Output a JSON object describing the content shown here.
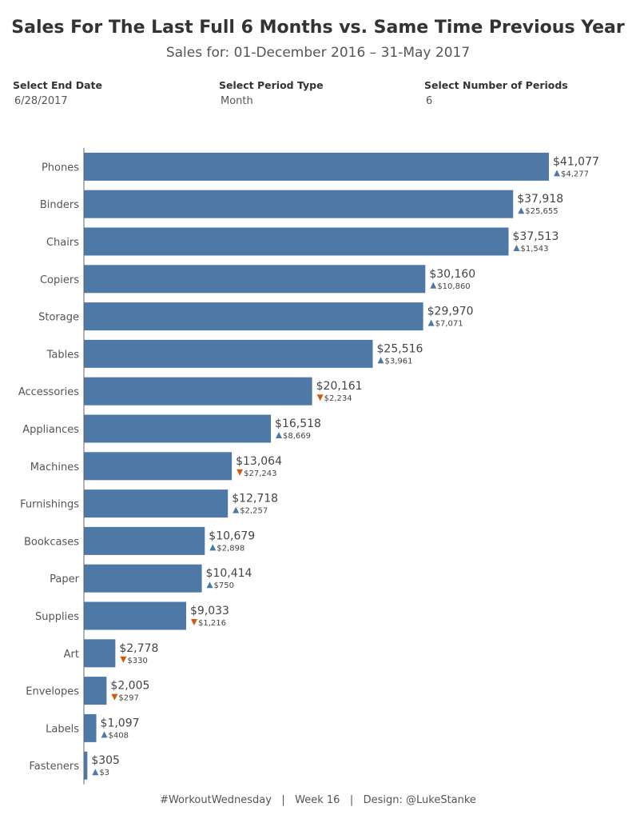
{
  "header": {
    "title": "Sales For The Last Full 6 Months vs. Same Time Previous Year",
    "subtitle": "Sales for: 01-December 2016 – 31-May 2017"
  },
  "parameters": [
    {
      "label": "Select End Date",
      "value": "6/28/2017"
    },
    {
      "label": "Select Period Type",
      "value": "Month"
    },
    {
      "label": "Select Number of Periods",
      "value": "6"
    }
  ],
  "colors": {
    "bar": "#4e79a7",
    "up": "#4e79a7",
    "down": "#d4580d",
    "axis": "#666666"
  },
  "chart_data": {
    "type": "bar",
    "orientation": "horizontal",
    "categories": [
      "Phones",
      "Binders",
      "Chairs",
      "Copiers",
      "Storage",
      "Tables",
      "Accessories",
      "Appliances",
      "Machines",
      "Furnishings",
      "Bookcases",
      "Paper",
      "Supplies",
      "Art",
      "Envelopes",
      "Labels",
      "Fasteners"
    ],
    "values": [
      41077,
      37918,
      37513,
      30160,
      29970,
      25516,
      20161,
      16518,
      13064,
      12718,
      10679,
      10414,
      9033,
      2778,
      2005,
      1097,
      305
    ],
    "value_labels": [
      "$41,077",
      "$37,918",
      "$37,513",
      "$30,160",
      "$29,970",
      "$25,516",
      "$20,161",
      "$16,518",
      "$13,064",
      "$12,718",
      "$10,679",
      "$10,414",
      "$9,033",
      "$2,778",
      "$2,005",
      "$1,097",
      "$305"
    ],
    "change_vs_previous_year": [
      4277,
      25655,
      1543,
      10860,
      7071,
      3961,
      -2234,
      8669,
      -27243,
      2257,
      2898,
      750,
      -1216,
      -330,
      -297,
      408,
      3
    ],
    "change_labels": [
      "$4,277",
      "$25,655",
      "$1,543",
      "$10,860",
      "$7,071",
      "$3,961",
      "$2,234",
      "$8,669",
      "$27,243",
      "$2,257",
      "$2,898",
      "$750",
      "$1,216",
      "$330",
      "$297",
      "$408",
      "$3"
    ],
    "xlim": [
      0,
      41077
    ],
    "grid": false
  },
  "footer": {
    "text": "#WorkoutWednesday   |   Week 16   |   Design: @LukeStanke"
  }
}
